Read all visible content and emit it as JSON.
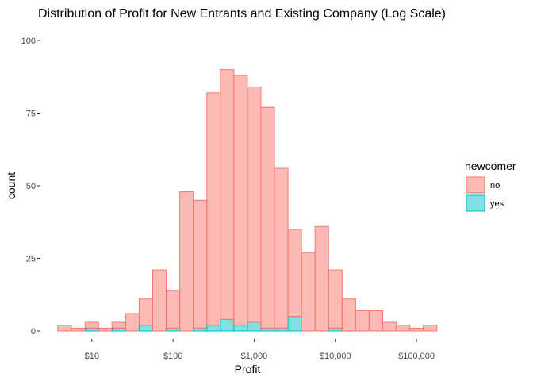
{
  "chart_data": {
    "type": "bar",
    "subtype": "stacked-histogram",
    "title": "Distribution of Profit for New Entrants and Existing Company (Log Scale)",
    "xlabel": "Profit",
    "ylabel": "count",
    "x_scale": "log10",
    "x_ticks": [
      {
        "value": 10,
        "label": "$10"
      },
      {
        "value": 100,
        "label": "$100"
      },
      {
        "value": 1000,
        "label": "$1,000"
      },
      {
        "value": 10000,
        "label": "$10,000"
      },
      {
        "value": 100000,
        "label": "$100,000"
      }
    ],
    "y_ticks": [
      0,
      25,
      50,
      75,
      100
    ],
    "ylim": [
      0,
      100
    ],
    "grid": false,
    "legend": {
      "title": "newcomer",
      "position": "right"
    },
    "bin_width_log10": 0.1667,
    "bin_centers": [
      4.6,
      6.8,
      10,
      14.7,
      21.5,
      31.6,
      46.4,
      68.1,
      100,
      146.8,
      215.4,
      316.2,
      464.2,
      681.3,
      1000,
      1467.8,
      2154.4,
      3162.3,
      4641.6,
      6812.9,
      10000,
      14677.99,
      21544.35,
      31622.78,
      46415.89,
      68129.21,
      100000,
      146779.93
    ],
    "series": [
      {
        "name": "no",
        "color": "#F8766D",
        "fill": "#F8766D",
        "fill_opacity": 0.5,
        "values": [
          2,
          1,
          2,
          1,
          2,
          6,
          9,
          21,
          13,
          48,
          44,
          80,
          86,
          86,
          81,
          76,
          55,
          30,
          27,
          36,
          20,
          11,
          7,
          7,
          3,
          2,
          1,
          2
        ]
      },
      {
        "name": "yes",
        "color": "#00BFC4",
        "fill": "#00BFC4",
        "fill_opacity": 0.5,
        "values": [
          0,
          0,
          1,
          0,
          1,
          0,
          2,
          0,
          1,
          0,
          1,
          2,
          4,
          2,
          3,
          1,
          1,
          5,
          0,
          0,
          1,
          0,
          0,
          0,
          0,
          0,
          0,
          0
        ]
      }
    ]
  }
}
